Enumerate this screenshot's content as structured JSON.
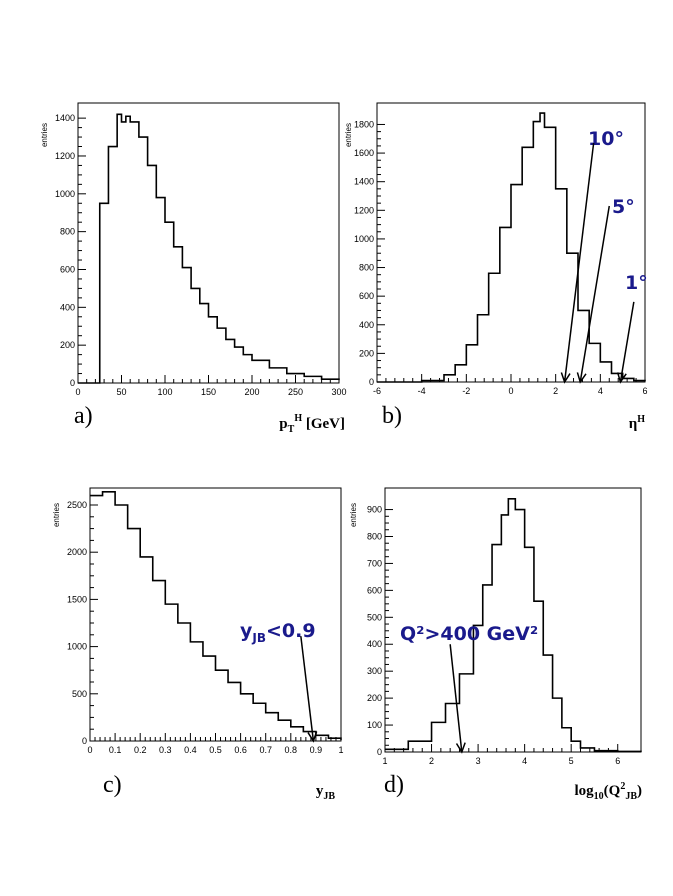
{
  "chart_data": [
    {
      "id": "a",
      "type": "histogram",
      "panel_label": "a)",
      "ylabel": "entries",
      "xlabel_main": "p",
      "xlabel_sub": "T",
      "xlabel_sup": "H",
      "xlabel_tail": " [GeV]",
      "xlim": [
        0,
        300
      ],
      "ylim": [
        0,
        1480
      ],
      "xticks": [
        0,
        50,
        100,
        150,
        200,
        250,
        300
      ],
      "yticks": [
        0,
        200,
        400,
        600,
        800,
        1000,
        1200,
        1400
      ],
      "xs": [
        0,
        25,
        35,
        45,
        50,
        55,
        60,
        70,
        80,
        90,
        100,
        110,
        120,
        130,
        140,
        150,
        160,
        170,
        180,
        190,
        200,
        220,
        240,
        260,
        280,
        300
      ],
      "ys": [
        0,
        950,
        1250,
        1420,
        1380,
        1410,
        1380,
        1300,
        1150,
        980,
        850,
        720,
        610,
        500,
        420,
        350,
        290,
        230,
        190,
        150,
        120,
        80,
        50,
        35,
        20,
        15
      ],
      "annotations": []
    },
    {
      "id": "b",
      "type": "histogram",
      "panel_label": "b)",
      "ylabel": "entries",
      "xlabel_main": "η",
      "xlabel_sub": "",
      "xlabel_sup": "H",
      "xlabel_tail": "",
      "xlim": [
        -6,
        6
      ],
      "ylim": [
        0,
        1950
      ],
      "xticks": [
        -6,
        -4,
        -2,
        0,
        2,
        4,
        6
      ],
      "yticks": [
        0,
        200,
        400,
        600,
        800,
        1000,
        1200,
        1400,
        1600,
        1800
      ],
      "xs": [
        -6,
        -4,
        -3,
        -2.5,
        -2,
        -1.5,
        -1,
        -0.5,
        0,
        0.5,
        1,
        1.3,
        1.5,
        2,
        2.5,
        3,
        3.5,
        4,
        4.5,
        5,
        5.5,
        6
      ],
      "ys": [
        0,
        10,
        50,
        120,
        260,
        470,
        760,
        1080,
        1380,
        1640,
        1820,
        1880,
        1780,
        1350,
        900,
        500,
        270,
        140,
        60,
        25,
        10,
        5
      ],
      "annotations": [
        {
          "text": "10°",
          "tail_x": 3.7,
          "tail_y": 1670,
          "head_x": 2.4,
          "head_y": 0
        },
        {
          "text": "5°",
          "tail_x": 4.4,
          "tail_y": 1230,
          "head_x": 3.1,
          "head_y": 0
        },
        {
          "text": "1°",
          "tail_x": 5.5,
          "tail_y": 560,
          "head_x": 4.9,
          "head_y": 0
        }
      ]
    },
    {
      "id": "c",
      "type": "histogram",
      "panel_label": "c)",
      "ylabel": "entries",
      "xlabel_main": "y",
      "xlabel_sub": "JB",
      "xlabel_sup": "",
      "xlabel_tail": "",
      "xlim": [
        0,
        1
      ],
      "ylim": [
        0,
        2680
      ],
      "xticks": [
        0,
        0.1,
        0.2,
        0.3,
        0.4,
        0.5,
        0.6,
        0.7,
        0.8,
        0.9,
        1
      ],
      "yticks": [
        0,
        500,
        1000,
        1500,
        2000,
        2500
      ],
      "xs": [
        0,
        0.05,
        0.1,
        0.15,
        0.2,
        0.25,
        0.3,
        0.35,
        0.4,
        0.45,
        0.5,
        0.55,
        0.6,
        0.65,
        0.7,
        0.75,
        0.8,
        0.85,
        0.9,
        0.95,
        1
      ],
      "ys": [
        2600,
        2640,
        2500,
        2250,
        1950,
        1700,
        1450,
        1250,
        1050,
        900,
        750,
        620,
        500,
        400,
        300,
        220,
        150,
        100,
        60,
        30,
        10
      ],
      "annotations": [
        {
          "text": "y",
          "sub": "JB",
          "tail": "<0.9",
          "tail_x": 0.84,
          "tail_y": 1110,
          "head_x": 0.89,
          "head_y": 0
        }
      ]
    },
    {
      "id": "d",
      "type": "histogram",
      "panel_label": "d)",
      "ylabel": "entries",
      "xlabel_main": "log",
      "xlabel_sub": "10",
      "xlabel_tail": "(Q",
      "xlabel_sup2": "2",
      "xlabel_sub2": "JB",
      "xlabel_end": ")",
      "xlim": [
        1,
        6.5
      ],
      "ylim": [
        0,
        980
      ],
      "xticks": [
        1,
        2,
        3,
        4,
        5,
        6
      ],
      "yticks": [
        0,
        100,
        200,
        300,
        400,
        500,
        600,
        700,
        800,
        900
      ],
      "xs": [
        1,
        1.5,
        2,
        2.3,
        2.6,
        2.9,
        3.1,
        3.3,
        3.5,
        3.65,
        3.8,
        4.0,
        4.2,
        4.4,
        4.6,
        4.8,
        5.0,
        5.2,
        5.5,
        6.0,
        6.5
      ],
      "ys": [
        10,
        40,
        110,
        180,
        290,
        470,
        620,
        770,
        880,
        940,
        900,
        760,
        560,
        360,
        200,
        90,
        40,
        15,
        5,
        2,
        1
      ],
      "annotations": [
        {
          "text": "Q²>400 GeV²",
          "tail_x": 2.4,
          "tail_y": 400,
          "head_x": 2.65,
          "head_y": 0
        }
      ]
    }
  ]
}
